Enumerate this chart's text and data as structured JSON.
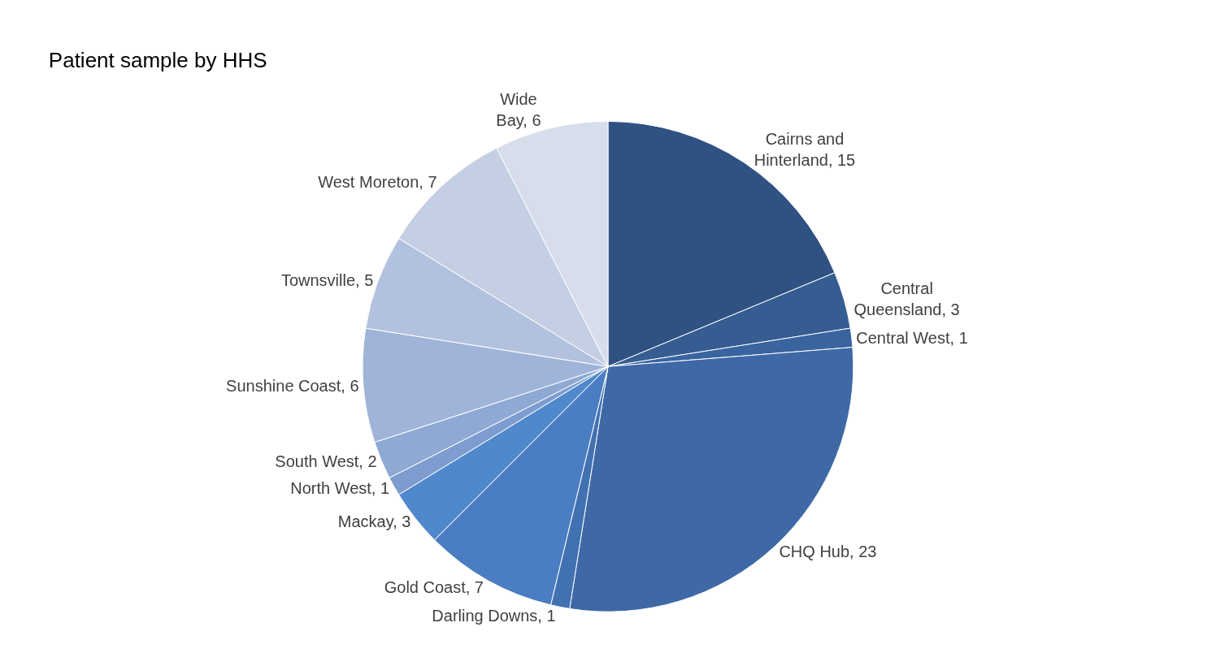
{
  "chart_data": {
    "type": "pie",
    "title": "Patient sample by HHS",
    "categories": [
      "Cairns and\nHinterland, 15",
      "Central\nQueensland, 3",
      "Central West, 1",
      "CHQ Hub, 23",
      "Darling Downs, 1",
      "Gold Coast, 7",
      "Mackay, 3",
      "North West, 1",
      "South West, 2",
      "Sunshine Coast, 6",
      "Townsville, 5",
      "West Moreton, 7",
      "Wide\nBay, 6"
    ],
    "values": [
      15,
      3,
      1,
      23,
      1,
      7,
      3,
      1,
      2,
      6,
      5,
      7,
      6
    ],
    "colors": [
      "#2f5283",
      "#355d92",
      "#3a64a0",
      "#3e69a6",
      "#4271b2",
      "#4a7dc1",
      "#5088cc",
      "#7d9ccf",
      "#8ea9d4",
      "#a0b4d9",
      "#b2c2de",
      "#c4cfe4",
      "#d6ddeb"
    ]
  }
}
